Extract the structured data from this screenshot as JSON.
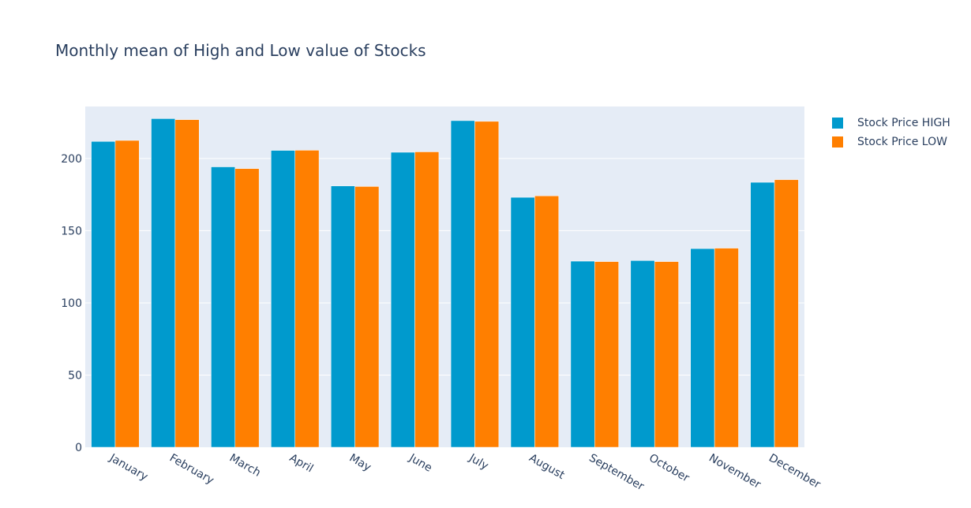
{
  "chart_data": {
    "type": "bar",
    "title": "Monthly mean of High and Low value of Stocks",
    "categories": [
      "January",
      "February",
      "March",
      "April",
      "May",
      "June",
      "July",
      "August",
      "September",
      "October",
      "November",
      "December"
    ],
    "series": [
      {
        "name": "Stock Price HIGH",
        "color": "#009ACD",
        "values": [
          211.8,
          227.6,
          194.2,
          205.6,
          181.0,
          204.3,
          226.2,
          173.1,
          128.9,
          129.3,
          137.6,
          183.5
        ]
      },
      {
        "name": "Stock Price LOW",
        "color": "#FF7F00",
        "values": [
          212.5,
          226.9,
          193.0,
          205.7,
          180.6,
          204.6,
          225.7,
          174.1,
          128.6,
          128.6,
          137.9,
          185.3
        ]
      }
    ],
    "y_ticks": [
      0,
      50,
      100,
      150,
      200
    ],
    "ylim": [
      0,
      236
    ],
    "xlabel": "",
    "ylabel": "",
    "grid": true,
    "legend_position": "top-right",
    "background": "#E5ECF6"
  }
}
